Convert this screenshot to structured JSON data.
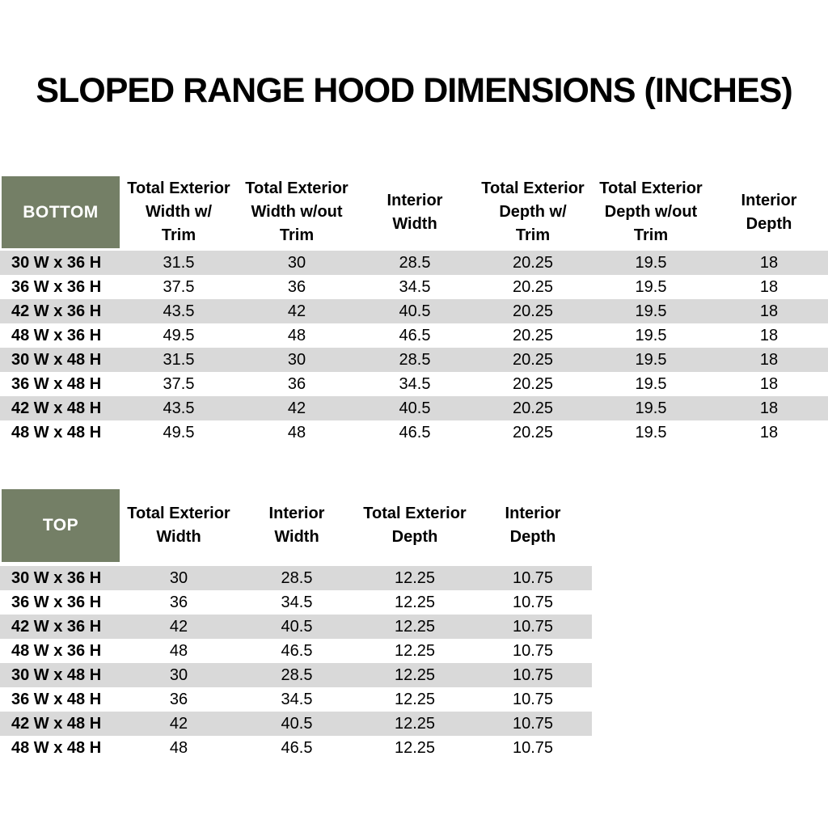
{
  "title": "SLOPED RANGE HOOD DIMENSIONS (INCHES)",
  "colors": {
    "header_green": "#747F66",
    "stripe_gray": "#D9D9D9",
    "header_text": "#FFFFFF",
    "body_text": "#000000"
  },
  "bottom_table": {
    "label": "BOTTOM",
    "columns": [
      "Total Exterior\nWidth w/\nTrim",
      "Total Exterior\nWidth w/out\nTrim",
      "Interior\nWidth",
      "Total Exterior\nDepth w/\nTrim",
      "Total Exterior\nDepth w/out\nTrim",
      "Interior\nDepth"
    ],
    "rows": [
      {
        "label": "30 W x 36 H",
        "values": [
          "31.5",
          "30",
          "28.5",
          "20.25",
          "19.5",
          "18"
        ]
      },
      {
        "label": "36 W x 36 H",
        "values": [
          "37.5",
          "36",
          "34.5",
          "20.25",
          "19.5",
          "18"
        ]
      },
      {
        "label": "42 W x 36 H",
        "values": [
          "43.5",
          "42",
          "40.5",
          "20.25",
          "19.5",
          "18"
        ]
      },
      {
        "label": "48 W x 36 H",
        "values": [
          "49.5",
          "48",
          "46.5",
          "20.25",
          "19.5",
          "18"
        ]
      },
      {
        "label": "30 W x 48 H",
        "values": [
          "31.5",
          "30",
          "28.5",
          "20.25",
          "19.5",
          "18"
        ]
      },
      {
        "label": "36 W x 48 H",
        "values": [
          "37.5",
          "36",
          "34.5",
          "20.25",
          "19.5",
          "18"
        ]
      },
      {
        "label": "42 W x 48 H",
        "values": [
          "43.5",
          "42",
          "40.5",
          "20.25",
          "19.5",
          "18"
        ]
      },
      {
        "label": "48 W x 48 H",
        "values": [
          "49.5",
          "48",
          "46.5",
          "20.25",
          "19.5",
          "18"
        ]
      }
    ]
  },
  "top_table": {
    "label": "TOP",
    "columns": [
      "Total Exterior\nWidth",
      "Interior\nWidth",
      "Total Exterior\nDepth",
      "Interior\nDepth"
    ],
    "rows": [
      {
        "label": "30 W x 36 H",
        "values": [
          "30",
          "28.5",
          "12.25",
          "10.75"
        ]
      },
      {
        "label": "36 W x 36 H",
        "values": [
          "36",
          "34.5",
          "12.25",
          "10.75"
        ]
      },
      {
        "label": "42 W x 36 H",
        "values": [
          "42",
          "40.5",
          "12.25",
          "10.75"
        ]
      },
      {
        "label": "48 W x 36 H",
        "values": [
          "48",
          "46.5",
          "12.25",
          "10.75"
        ]
      },
      {
        "label": "30 W x 48 H",
        "values": [
          "30",
          "28.5",
          "12.25",
          "10.75"
        ]
      },
      {
        "label": "36 W x 48 H",
        "values": [
          "36",
          "34.5",
          "12.25",
          "10.75"
        ]
      },
      {
        "label": "42 W x 48 H",
        "values": [
          "42",
          "40.5",
          "12.25",
          "10.75"
        ]
      },
      {
        "label": "48 W x 48 H",
        "values": [
          "48",
          "46.5",
          "12.25",
          "10.75"
        ]
      }
    ]
  }
}
